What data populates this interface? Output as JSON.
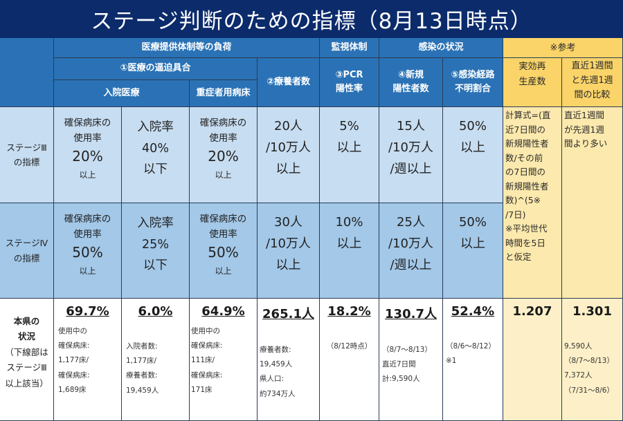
{
  "title": "ステージ判断のための指標（8月13日時点）",
  "headers": {
    "medical_load": "医療提供体制等の負荷",
    "monitoring": "監視体制",
    "infection": "感染の状況",
    "reference": "※参考",
    "medical_strain": "①医療の逼迫具合",
    "recuperating": "②療養者数",
    "pcr": [
      "③PCR",
      "陽性率"
    ],
    "new_cases": [
      "④新規",
      "陽性者数"
    ],
    "unknown_route": [
      "⑤感染経路",
      "不明割合"
    ],
    "effective_r": [
      "実効再",
      "生産数"
    ],
    "weekly_compare": [
      "直近1週間",
      "と先週1週",
      "間の比較"
    ],
    "inpatient": "入院医療",
    "severe_beds": "重症者用病床"
  },
  "stage3": {
    "label": [
      "ステージⅢ",
      "の指標"
    ],
    "bed_usage": [
      "確保病床の",
      "使用率",
      "20%",
      "以上"
    ],
    "hospitalization": [
      "入院率",
      "40%",
      "以下"
    ],
    "severe_usage": [
      "確保病床の",
      "使用率",
      "20%",
      "以上"
    ],
    "recuperating": [
      "20人",
      "/10万人",
      "以上"
    ],
    "pcr": [
      "5%",
      "以上"
    ],
    "new_cases": [
      "15人",
      "/10万人",
      "/週以上"
    ],
    "unknown_route": [
      "50%",
      "以上"
    ],
    "r_formula": [
      "計算式=(直",
      "近7日間の",
      "新規陽性者",
      "数/その前",
      "の7日間の",
      "新規陽性者",
      "数)^(5※",
      "/7日)",
      "※平均世代",
      "時間を5日",
      "と仮定"
    ],
    "weekly_rule": [
      "直近1週間",
      "が先週1週",
      "間より多い"
    ]
  },
  "stage4": {
    "label": [
      "ステージⅣ",
      "の指標"
    ],
    "bed_usage": [
      "確保病床の",
      "使用率",
      "50%",
      "以上"
    ],
    "hospitalization": [
      "入院率",
      "25%",
      "以下"
    ],
    "severe_usage": [
      "確保病床の",
      "使用率",
      "50%",
      "以上"
    ],
    "recuperating": [
      "30人",
      "/10万人",
      "以上"
    ],
    "pcr": [
      "10%",
      "以上"
    ],
    "new_cases": [
      "25人",
      "/10万人",
      "/週以上"
    ],
    "unknown_route": [
      "50%",
      "以上"
    ]
  },
  "status": {
    "label": [
      "本県の",
      "状況",
      "（下線部は",
      "ステージⅢ",
      "以上該当）"
    ],
    "bed_usage": {
      "value": "69.7%",
      "detail": [
        "使用中の",
        "確保病床:",
        "1,177床/",
        "確保病床:",
        "1,689床"
      ]
    },
    "hospitalization": {
      "value": "6.0%",
      "detail": [
        "入院者数:",
        "1,177床/",
        "療養者数:",
        "19,459人"
      ]
    },
    "severe_usage": {
      "value": "64.9%",
      "detail": [
        "使用中の",
        "確保病床:",
        "111床/",
        "確保病床:",
        "171床"
      ]
    },
    "recuperating": {
      "value": "265.1人",
      "detail": [
        "療養者数:",
        "19,459人",
        "県人口:",
        "約734万人"
      ]
    },
    "pcr": {
      "value": "18.2%",
      "detail": [
        "（8/12時点）"
      ]
    },
    "new_cases": {
      "value": "130.7人",
      "detail": [
        "（8/7～8/13）",
        "直近7日間",
        "計:9,590人"
      ]
    },
    "unknown_route": {
      "value": "52.4%",
      "detail": [
        "（8/6～8/12）",
        "※1"
      ]
    },
    "effective_r": {
      "value": "1.207"
    },
    "weekly_compare": {
      "value": "1.301",
      "detail": [
        "9,590人",
        "（8/7～8/13）",
        "7,372人",
        "（7/31～8/6）"
      ]
    }
  }
}
